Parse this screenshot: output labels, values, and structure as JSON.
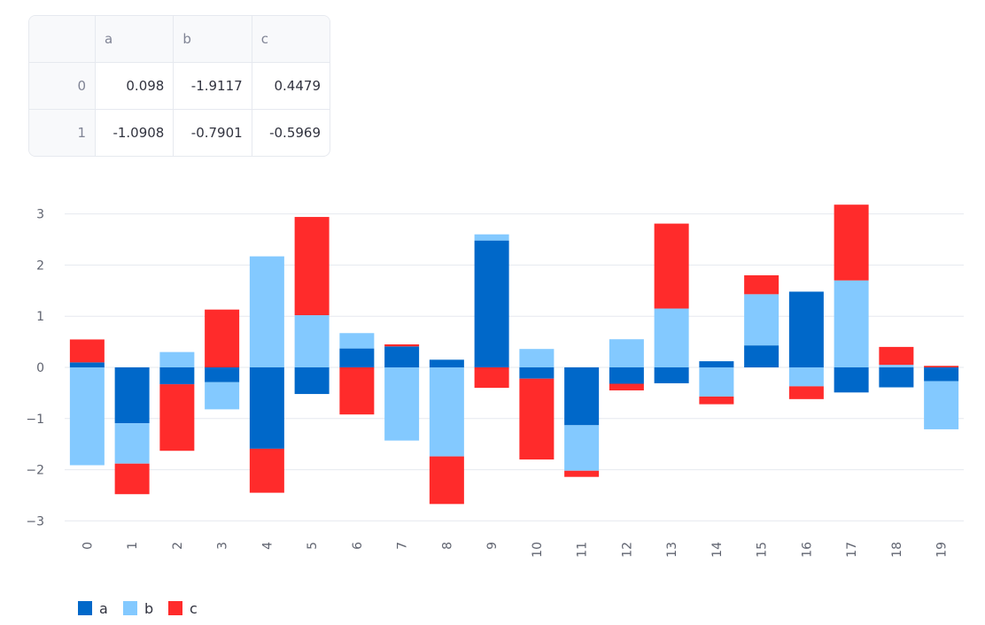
{
  "table": {
    "columns": [
      "",
      "a",
      "b",
      "c"
    ],
    "rows": [
      {
        "index": "0",
        "a": "0.098",
        "b": "-1.9117",
        "c": "0.4479"
      },
      {
        "index": "1",
        "a": "-1.0908",
        "b": "-0.7901",
        "c": "-0.5969"
      }
    ]
  },
  "chart_data": {
    "type": "bar",
    "stacked": true,
    "categories": [
      "0",
      "1",
      "2",
      "3",
      "4",
      "5",
      "6",
      "7",
      "8",
      "9",
      "10",
      "11",
      "12",
      "13",
      "14",
      "15",
      "16",
      "17",
      "18",
      "19"
    ],
    "series": [
      {
        "name": "a",
        "color": "#0068c9",
        "values": [
          0.098,
          -1.0908,
          -0.33,
          -0.29,
          -1.59,
          -0.52,
          0.37,
          0.41,
          0.15,
          2.48,
          -0.22,
          -1.13,
          -0.32,
          -0.31,
          0.12,
          0.43,
          1.48,
          -0.49,
          -0.39,
          -0.27
        ]
      },
      {
        "name": "b",
        "color": "#83c9ff",
        "values": [
          -1.9117,
          -0.7901,
          0.3,
          -0.53,
          2.17,
          1.02,
          0.3,
          -1.43,
          -1.74,
          0.12,
          0.36,
          -0.89,
          0.55,
          1.15,
          -0.57,
          1.0,
          -0.37,
          1.7,
          0.05,
          -0.94
        ]
      },
      {
        "name": "c",
        "color": "#ff2b2b",
        "values": [
          0.4479,
          -0.5969,
          -1.3,
          1.13,
          -0.86,
          1.92,
          -0.92,
          0.04,
          -0.93,
          -0.4,
          -1.58,
          -0.12,
          -0.13,
          1.66,
          -0.15,
          0.37,
          -0.25,
          1.48,
          0.35,
          0.03
        ]
      }
    ],
    "yticks": [
      "3",
      "2",
      "1",
      "0",
      "−1",
      "−2",
      "−3"
    ],
    "ylim": [
      -3.3,
      3.3
    ],
    "grid": true,
    "legend": "bottom-left"
  }
}
